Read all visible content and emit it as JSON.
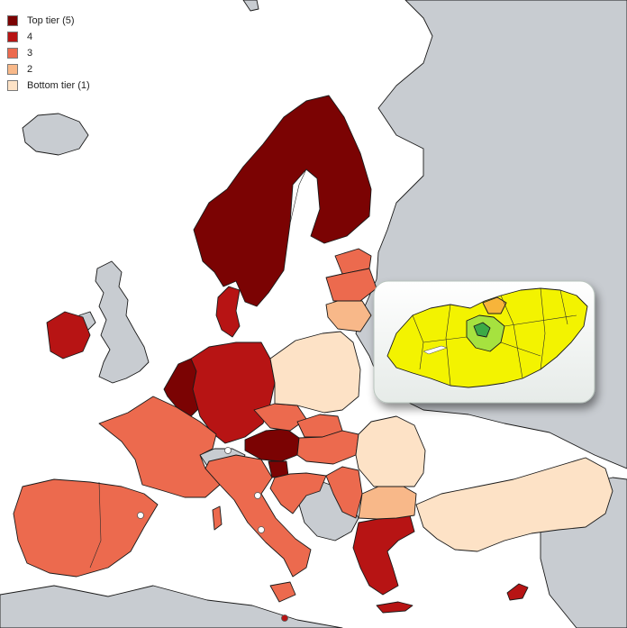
{
  "legend": {
    "items": [
      {
        "label": "Top tier (5)",
        "color": "#7b0303"
      },
      {
        "label": "4",
        "color": "#b71414"
      },
      {
        "label": "3",
        "color": "#ec6a4e"
      },
      {
        "label": "2",
        "color": "#f8b889"
      },
      {
        "label": "Bottom tier (1)",
        "color": "#fde2c6"
      }
    ]
  },
  "colors": {
    "sea": "#ffffff",
    "no_data": "#c8ccd1",
    "tier5": "#7b0303",
    "tier4": "#b71414",
    "tier3": "#ec6a4e",
    "tier2": "#f8b889",
    "tier1": "#fde2c6",
    "inset_yellow": "#f3f300",
    "inset_light_green": "#a6e23f",
    "inset_green": "#3caa46",
    "inset_orange": "#f7b43a"
  },
  "inset": {
    "subject": "Hungary counties"
  }
}
